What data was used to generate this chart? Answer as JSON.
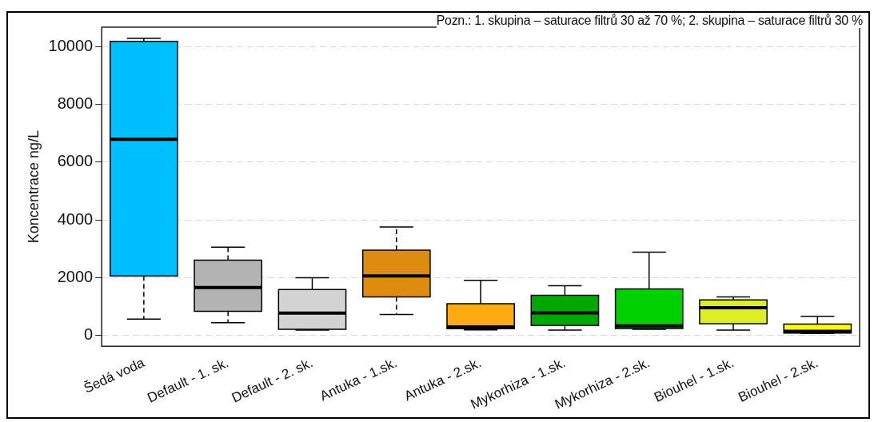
{
  "chart_data": {
    "type": "box",
    "ylabel": "Koncentrace ng/L",
    "annotations": [
      "Pozn.: 1. skupina – saturace filtrů 30 až 70 %; 2. skupina – saturace filtrů 30 %"
    ],
    "categories": [
      "Šedá voda",
      "Default - 1. sk.",
      "Default - 2. sk.",
      "Antuka - 1.sk.",
      "Antuka - 2.sk.",
      "Mykorhiza - 1.sk.",
      "Mykorhiza - 2.sk.",
      "Biouhel - 1.sk.",
      "Biouhel - 2.sk."
    ],
    "colors": [
      "#00bfff",
      "#b3b3b3",
      "#d3d3d3",
      "#dd8c10",
      "#ffaa11",
      "#00a800",
      "#00d000",
      "#ddee22",
      "#ffff00"
    ],
    "boxes": [
      {
        "low": 550,
        "q1": 2050,
        "median": 6800,
        "q3": 10200,
        "high": 10300
      },
      {
        "low": 430,
        "q1": 820,
        "median": 1650,
        "q3": 2600,
        "high": 3050
      },
      {
        "low": 170,
        "q1": 200,
        "median": 760,
        "q3": 1580,
        "high": 1990
      },
      {
        "low": 710,
        "q1": 1320,
        "median": 2050,
        "q3": 2950,
        "high": 3750
      },
      {
        "low": 180,
        "q1": 220,
        "median": 280,
        "q3": 1090,
        "high": 1900
      },
      {
        "low": 170,
        "q1": 330,
        "median": 770,
        "q3": 1380,
        "high": 1710
      },
      {
        "low": 200,
        "q1": 230,
        "median": 320,
        "q3": 1600,
        "high": 2880
      },
      {
        "low": 170,
        "q1": 390,
        "median": 950,
        "q3": 1220,
        "high": 1320
      },
      {
        "low": 60,
        "q1": 70,
        "median": 130,
        "q3": 380,
        "high": 650
      }
    ],
    "ylim": [
      -390,
      10690
    ],
    "yticks": [
      0,
      2000,
      4000,
      6000,
      8000,
      10000
    ],
    "grid": "y"
  }
}
